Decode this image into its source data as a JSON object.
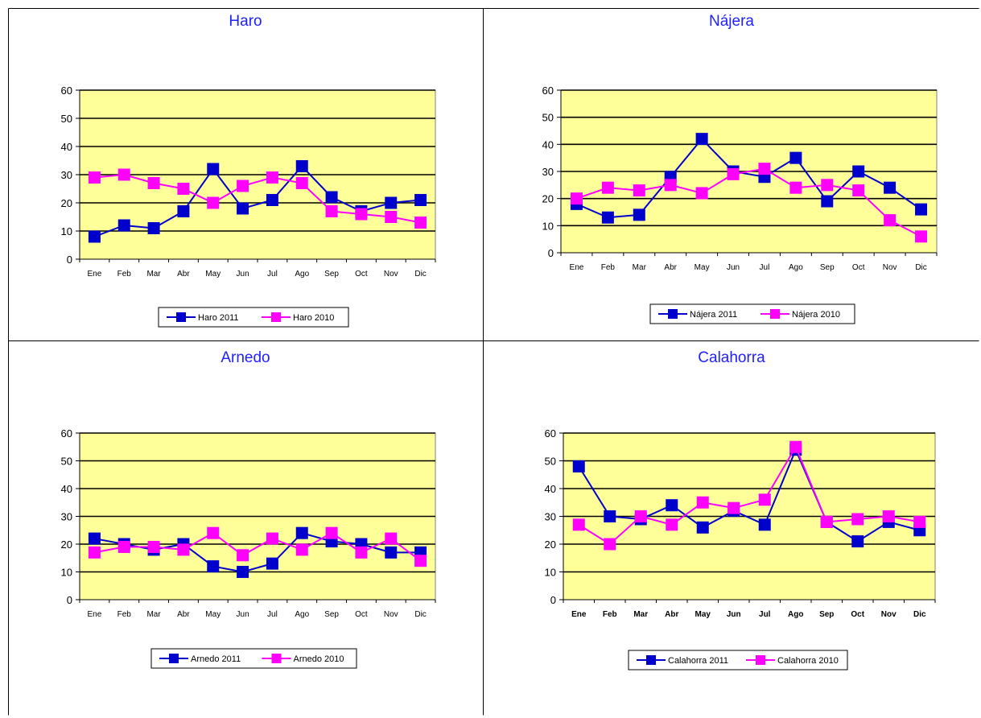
{
  "colors": {
    "series_2011": "#0000cc",
    "series_2010": "#ff00ff",
    "plot_bg": "#ffff99",
    "title": "#1f1fff",
    "gridline": "#000000",
    "border": "#000000"
  },
  "chart_data": [
    {
      "type": "line",
      "title": "Haro",
      "categories": [
        "Ene",
        "Feb",
        "Mar",
        "Abr",
        "May",
        "Jun",
        "Jul",
        "Ago",
        "Sep",
        "Oct",
        "Nov",
        "Dic"
      ],
      "ylim": [
        0,
        60
      ],
      "yticks": [
        "0",
        "10",
        "20",
        "30",
        "40",
        "50",
        "60"
      ],
      "grid": true,
      "bold_ticks": false,
      "legend": "bottom",
      "series": [
        {
          "name": "Haro 2011",
          "values": [
            8,
            12,
            11,
            17,
            32,
            18,
            21,
            33,
            22,
            17,
            20,
            21
          ]
        },
        {
          "name": "Haro 2010",
          "values": [
            29,
            30,
            27,
            25,
            20,
            26,
            29,
            27,
            17,
            16,
            15,
            13
          ]
        }
      ]
    },
    {
      "type": "line",
      "title": "Nájera",
      "categories": [
        "Ene",
        "Feb",
        "Mar",
        "Abr",
        "May",
        "Jun",
        "Jul",
        "Ago",
        "Sep",
        "Oct",
        "Nov",
        "Dic"
      ],
      "ylim": [
        0,
        60
      ],
      "yticks": [
        "0",
        "10",
        "20",
        "30",
        "40",
        "50",
        "60"
      ],
      "grid": true,
      "bold_ticks": false,
      "legend": "bottom",
      "series": [
        {
          "name": "Nájera 2011",
          "values": [
            18,
            13,
            14,
            28,
            42,
            30,
            28,
            35,
            19,
            30,
            24,
            16
          ]
        },
        {
          "name": "Nájera 2010",
          "values": [
            20,
            24,
            23,
            25,
            22,
            29,
            31,
            24,
            25,
            23,
            12,
            6
          ]
        }
      ]
    },
    {
      "type": "line",
      "title": "Arnedo",
      "categories": [
        "Ene",
        "Feb",
        "Mar",
        "Abr",
        "May",
        "Jun",
        "Jul",
        "Ago",
        "Sep",
        "Oct",
        "Nov",
        "Dic"
      ],
      "ylim": [
        0,
        60
      ],
      "yticks": [
        "0",
        "10",
        "20",
        "30",
        "40",
        "50",
        "60"
      ],
      "grid": true,
      "bold_ticks": false,
      "legend": "bottom",
      "series": [
        {
          "name": "Arnedo 2011",
          "values": [
            22,
            20,
            18,
            20,
            12,
            10,
            13,
            24,
            21,
            20,
            17,
            17
          ]
        },
        {
          "name": "Arnedo 2010",
          "values": [
            17,
            19,
            19,
            18,
            24,
            16,
            22,
            18,
            24,
            17,
            22,
            14
          ]
        }
      ]
    },
    {
      "type": "line",
      "title": "Calahorra",
      "categories": [
        "Ene",
        "Feb",
        "Mar",
        "Abr",
        "May",
        "Jun",
        "Jul",
        "Ago",
        "Sep",
        "Oct",
        "Nov",
        "Dic"
      ],
      "ylim": [
        0,
        60
      ],
      "yticks": [
        "0",
        "10",
        "20",
        "30",
        "40",
        "50",
        "60"
      ],
      "grid": true,
      "bold_ticks": true,
      "legend": "bottom",
      "series": [
        {
          "name": "Calahorra 2011",
          "values": [
            48,
            30,
            29,
            34,
            26,
            32,
            27,
            54,
            28,
            21,
            28,
            25
          ]
        },
        {
          "name": "Calahorra 2010",
          "values": [
            27,
            20,
            30,
            27,
            35,
            33,
            36,
            55,
            28,
            29,
            30,
            28
          ]
        }
      ]
    }
  ]
}
